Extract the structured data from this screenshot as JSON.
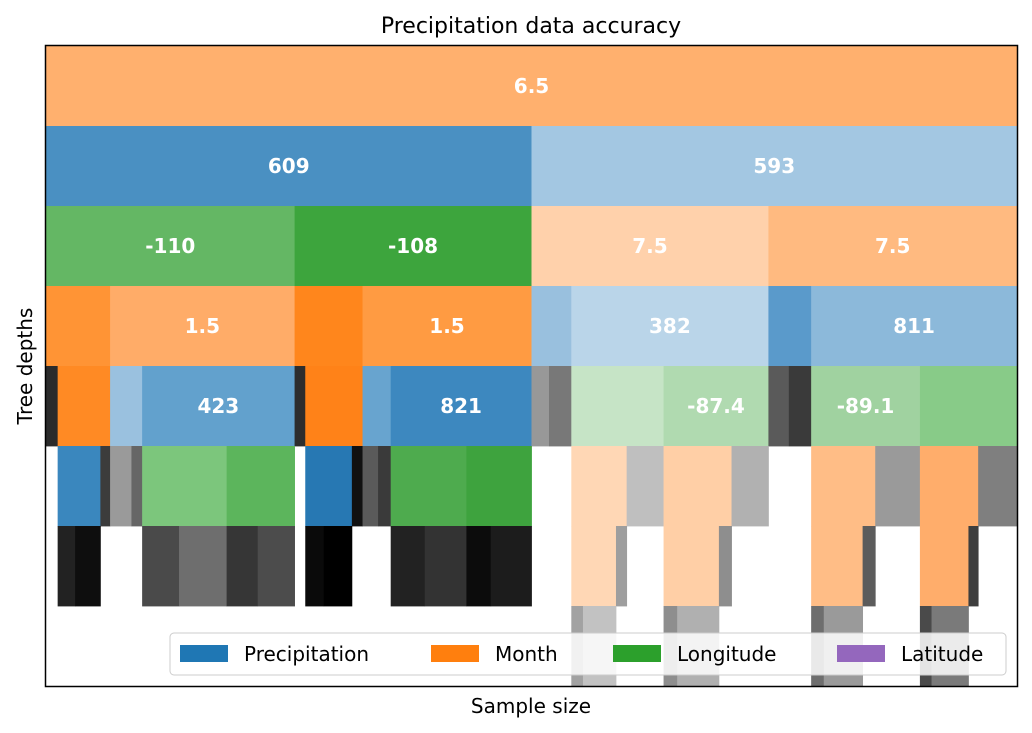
{
  "chart_data": {
    "type": "icicle",
    "title": "Precipitation data accuracy",
    "xlabel": "Sample size",
    "ylabel": "Tree depths",
    "legend": {
      "placement": "lower-right",
      "entries": [
        {
          "name": "Precipitation",
          "color": "#1f77b4"
        },
        {
          "name": "Month",
          "color": "#ff7f0e"
        },
        {
          "name": "Longitude",
          "color": "#2ca02c"
        },
        {
          "name": "Latitude",
          "color": "#9467bd"
        }
      ]
    },
    "depth_levels": 8,
    "total_size": 1.0,
    "nodes": [
      {
        "depth": 0,
        "start": 0.0,
        "size": 1.0,
        "color": "#ffb06e",
        "label": "6.5"
      },
      {
        "depth": 1,
        "start": 0.0,
        "size": 0.5,
        "color": "#4a90c2",
        "label": "609"
      },
      {
        "depth": 1,
        "start": 0.5,
        "size": 0.5,
        "color": "#a3c7e2",
        "label": "593"
      },
      {
        "depth": 2,
        "start": 0.0,
        "size": 0.256,
        "color": "#64b764",
        "label": "-110"
      },
      {
        "depth": 2,
        "start": 0.256,
        "size": 0.244,
        "color": "#3da53d",
        "label": "-108"
      },
      {
        "depth": 2,
        "start": 0.5,
        "size": 0.244,
        "color": "#ffd1ab",
        "label": "7.5"
      },
      {
        "depth": 2,
        "start": 0.744,
        "size": 0.256,
        "color": "#ffba80",
        "label": "7.5"
      },
      {
        "depth": 3,
        "start": 0.0,
        "size": 0.066,
        "color": "#ff9435",
        "label": ""
      },
      {
        "depth": 3,
        "start": 0.066,
        "size": 0.19,
        "color": "#ffac68",
        "label": "1.5"
      },
      {
        "depth": 3,
        "start": 0.256,
        "size": 0.07,
        "color": "#ff861c",
        "label": ""
      },
      {
        "depth": 3,
        "start": 0.326,
        "size": 0.174,
        "color": "#ff9b42",
        "label": "1.5"
      },
      {
        "depth": 3,
        "start": 0.5,
        "size": 0.041,
        "color": "#99c0de",
        "label": ""
      },
      {
        "depth": 3,
        "start": 0.541,
        "size": 0.203,
        "color": "#bad5e9",
        "label": "382"
      },
      {
        "depth": 3,
        "start": 0.744,
        "size": 0.044,
        "color": "#5a9acb",
        "label": ""
      },
      {
        "depth": 3,
        "start": 0.788,
        "size": 0.212,
        "color": "#8cb9da",
        "label": "811"
      },
      {
        "depth": 4,
        "start": 0.0,
        "size": 0.012,
        "color": "#2b2b2b",
        "label": ""
      },
      {
        "depth": 4,
        "start": 0.012,
        "size": 0.054,
        "color": "#ff8a24",
        "label": ""
      },
      {
        "depth": 4,
        "start": 0.066,
        "size": 0.033,
        "color": "#9ac1df",
        "label": ""
      },
      {
        "depth": 4,
        "start": 0.099,
        "size": 0.157,
        "color": "#62a1cd",
        "label": "423"
      },
      {
        "depth": 4,
        "start": 0.256,
        "size": 0.011,
        "color": "#2d2d2d",
        "label": ""
      },
      {
        "depth": 4,
        "start": 0.267,
        "size": 0.059,
        "color": "#ff8218",
        "label": ""
      },
      {
        "depth": 4,
        "start": 0.326,
        "size": 0.029,
        "color": "#68a4cf",
        "label": ""
      },
      {
        "depth": 4,
        "start": 0.355,
        "size": 0.145,
        "color": "#3d88bf",
        "label": "821"
      },
      {
        "depth": 4,
        "start": 0.5,
        "size": 0.018,
        "color": "#989898",
        "label": ""
      },
      {
        "depth": 4,
        "start": 0.518,
        "size": 0.023,
        "color": "#787878",
        "label": ""
      },
      {
        "depth": 4,
        "start": 0.541,
        "size": 0.095,
        "color": "#c6e4c6",
        "label": ""
      },
      {
        "depth": 4,
        "start": 0.636,
        "size": 0.108,
        "color": "#b0dab0",
        "label": "-87.4"
      },
      {
        "depth": 4,
        "start": 0.744,
        "size": 0.021,
        "color": "#5a5a5a",
        "label": ""
      },
      {
        "depth": 4,
        "start": 0.765,
        "size": 0.023,
        "color": "#3a3a3a",
        "label": ""
      },
      {
        "depth": 4,
        "start": 0.788,
        "size": 0.112,
        "color": "#a0d2a0",
        "label": "-89.1"
      },
      {
        "depth": 4,
        "start": 0.9,
        "size": 0.1,
        "color": "#88cb88",
        "label": ""
      },
      {
        "depth": 5,
        "start": 0.012,
        "size": 0.044,
        "color": "#3a87be",
        "label": ""
      },
      {
        "depth": 5,
        "start": 0.056,
        "size": 0.01,
        "color": "#3c3c3c",
        "label": ""
      },
      {
        "depth": 5,
        "start": 0.066,
        "size": 0.022,
        "color": "#9a9a9a",
        "label": ""
      },
      {
        "depth": 5,
        "start": 0.088,
        "size": 0.011,
        "color": "#666666",
        "label": ""
      },
      {
        "depth": 5,
        "start": 0.099,
        "size": 0.087,
        "color": "#7cc67c",
        "label": ""
      },
      {
        "depth": 5,
        "start": 0.186,
        "size": 0.07,
        "color": "#5cb55c",
        "label": ""
      },
      {
        "depth": 5,
        "start": 0.267,
        "size": 0.048,
        "color": "#2778b3",
        "label": ""
      },
      {
        "depth": 5,
        "start": 0.315,
        "size": 0.011,
        "color": "#111111",
        "label": ""
      },
      {
        "depth": 5,
        "start": 0.326,
        "size": 0.016,
        "color": "#5a5a5a",
        "label": ""
      },
      {
        "depth": 5,
        "start": 0.342,
        "size": 0.013,
        "color": "#3a3a3a",
        "label": ""
      },
      {
        "depth": 5,
        "start": 0.355,
        "size": 0.078,
        "color": "#4eab4e",
        "label": ""
      },
      {
        "depth": 5,
        "start": 0.433,
        "size": 0.067,
        "color": "#3ea33e",
        "label": ""
      },
      {
        "depth": 5,
        "start": 0.541,
        "size": 0.057,
        "color": "#ffd7b5",
        "label": ""
      },
      {
        "depth": 5,
        "start": 0.598,
        "size": 0.038,
        "color": "#bfbfbf",
        "label": ""
      },
      {
        "depth": 5,
        "start": 0.636,
        "size": 0.07,
        "color": "#ffcfa6",
        "label": ""
      },
      {
        "depth": 5,
        "start": 0.706,
        "size": 0.038,
        "color": "#b1b1b1",
        "label": ""
      },
      {
        "depth": 5,
        "start": 0.788,
        "size": 0.066,
        "color": "#ffbd86",
        "label": ""
      },
      {
        "depth": 5,
        "start": 0.854,
        "size": 0.046,
        "color": "#9a9a9a",
        "label": ""
      },
      {
        "depth": 5,
        "start": 0.9,
        "size": 0.06,
        "color": "#ffad6b",
        "label": ""
      },
      {
        "depth": 5,
        "start": 0.96,
        "size": 0.04,
        "color": "#7f7f7f",
        "label": ""
      },
      {
        "depth": 6,
        "start": 0.012,
        "size": 0.018,
        "color": "#222222",
        "label": ""
      },
      {
        "depth": 6,
        "start": 0.03,
        "size": 0.026,
        "color": "#0e0e0e",
        "label": ""
      },
      {
        "depth": 6,
        "start": 0.099,
        "size": 0.038,
        "color": "#4a4a4a",
        "label": ""
      },
      {
        "depth": 6,
        "start": 0.137,
        "size": 0.049,
        "color": "#6e6e6e",
        "label": ""
      },
      {
        "depth": 6,
        "start": 0.186,
        "size": 0.032,
        "color": "#363636",
        "label": ""
      },
      {
        "depth": 6,
        "start": 0.218,
        "size": 0.038,
        "color": "#4c4c4c",
        "label": ""
      },
      {
        "depth": 6,
        "start": 0.267,
        "size": 0.019,
        "color": "#0a0a0a",
        "label": ""
      },
      {
        "depth": 6,
        "start": 0.286,
        "size": 0.029,
        "color": "#000000",
        "label": ""
      },
      {
        "depth": 6,
        "start": 0.355,
        "size": 0.035,
        "color": "#222222",
        "label": ""
      },
      {
        "depth": 6,
        "start": 0.39,
        "size": 0.043,
        "color": "#333333",
        "label": ""
      },
      {
        "depth": 6,
        "start": 0.433,
        "size": 0.025,
        "color": "#0c0c0c",
        "label": ""
      },
      {
        "depth": 6,
        "start": 0.458,
        "size": 0.042,
        "color": "#1c1c1c",
        "label": ""
      },
      {
        "depth": 6,
        "start": 0.541,
        "size": 0.046,
        "color": "#ffd7b5",
        "label": ""
      },
      {
        "depth": 6,
        "start": 0.587,
        "size": 0.011,
        "color": "#9e9e9e",
        "label": ""
      },
      {
        "depth": 6,
        "start": 0.636,
        "size": 0.057,
        "color": "#ffcfa6",
        "label": ""
      },
      {
        "depth": 6,
        "start": 0.693,
        "size": 0.013,
        "color": "#8e8e8e",
        "label": ""
      },
      {
        "depth": 6,
        "start": 0.788,
        "size": 0.053,
        "color": "#ffbd86",
        "label": ""
      },
      {
        "depth": 6,
        "start": 0.841,
        "size": 0.013,
        "color": "#5c5c5c",
        "label": ""
      },
      {
        "depth": 6,
        "start": 0.9,
        "size": 0.05,
        "color": "#ffad6b",
        "label": ""
      },
      {
        "depth": 6,
        "start": 0.95,
        "size": 0.01,
        "color": "#3e3e3e",
        "label": ""
      },
      {
        "depth": 7,
        "start": 0.541,
        "size": 0.012,
        "color": "#a2a2a2",
        "label": ""
      },
      {
        "depth": 7,
        "start": 0.553,
        "size": 0.034,
        "color": "#c2c2c2",
        "label": ""
      },
      {
        "depth": 7,
        "start": 0.636,
        "size": 0.014,
        "color": "#8e8e8e",
        "label": ""
      },
      {
        "depth": 7,
        "start": 0.65,
        "size": 0.043,
        "color": "#b0b0b0",
        "label": ""
      },
      {
        "depth": 7,
        "start": 0.788,
        "size": 0.013,
        "color": "#6e6e6e",
        "label": ""
      },
      {
        "depth": 7,
        "start": 0.801,
        "size": 0.04,
        "color": "#9a9a9a",
        "label": ""
      },
      {
        "depth": 7,
        "start": 0.9,
        "size": 0.012,
        "color": "#4a4a4a",
        "label": ""
      },
      {
        "depth": 7,
        "start": 0.912,
        "size": 0.038,
        "color": "#7a7a7a",
        "label": ""
      }
    ]
  }
}
